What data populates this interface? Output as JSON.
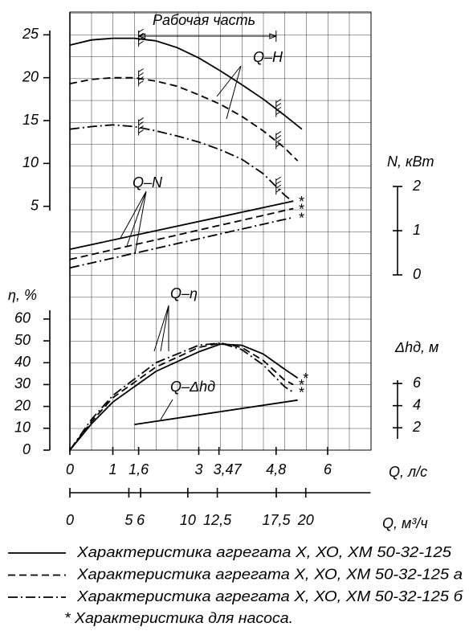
{
  "chart_data": {
    "type": "line",
    "working_part": {
      "label": "Рабочая часть",
      "range": [
        1.6,
        4.8
      ]
    },
    "curve_labels": [
      "Q–H",
      "Q–N",
      "Q–η",
      "Q–Δhд"
    ],
    "x": {
      "label": "Q, л/с",
      "lim": [
        0,
        7
      ],
      "ticks": [
        0,
        1,
        {
          "value": 1.6,
          "label": "1,6"
        },
        3,
        {
          "value": 3.47,
          "label": "3,47"
        },
        {
          "value": 4.8,
          "label": "4,8"
        },
        6
      ]
    },
    "x2": {
      "label": "Q, м³/ч",
      "lim": [
        0,
        25.5
      ],
      "ticks": [
        0,
        5,
        6,
        10,
        {
          "value": 12.5,
          "label": "12,5"
        },
        {
          "value": 17.5,
          "label": "17,5"
        },
        20
      ]
    },
    "H": {
      "lim": [
        4.5,
        25.5
      ],
      "ticks": [
        5,
        10,
        15,
        20,
        25
      ]
    },
    "N": {
      "label": "N, кВт",
      "lim": [
        0,
        2
      ],
      "ticks": [
        0,
        1,
        2
      ]
    },
    "eta": {
      "label": "η, %",
      "lim": [
        0,
        64
      ],
      "ticks": [
        0,
        10,
        20,
        30,
        40,
        50,
        60
      ]
    },
    "dh": {
      "label": "Δhд, м",
      "lim": [
        1,
        6.3
      ],
      "ticks": [
        2,
        4,
        6
      ]
    },
    "variants": [
      {
        "name": "Характеристика агрегата Х, ХО, ХМ 50-32-125",
        "style": "solid",
        "H": {
          "x": [
            0,
            0.5,
            1,
            1.5,
            2,
            2.5,
            3,
            3.5,
            4,
            4.5,
            5,
            5.4
          ],
          "values": [
            23.8,
            24.4,
            24.6,
            24.6,
            24.3,
            23.5,
            22.3,
            20.8,
            19.2,
            17.5,
            15.6,
            14
          ]
        },
        "N": {
          "x": [
            0,
            5.2
          ],
          "values": [
            0.58,
            1.67
          ]
        },
        "eta": {
          "x": [
            0,
            0.5,
            1,
            2,
            3,
            3.5,
            4,
            4.5,
            5,
            5.3
          ],
          "values": [
            0,
            12,
            22,
            36,
            45,
            48.5,
            48,
            44,
            37,
            33
          ]
        }
      },
      {
        "name": "Характеристика агрегата Х, ХО, ХМ 50-32-125 а",
        "style": "dashed",
        "H": {
          "x": [
            0,
            0.5,
            1,
            1.5,
            2,
            2.5,
            3,
            3.5,
            4,
            4.5,
            5,
            5.3
          ],
          "values": [
            19.3,
            19.8,
            20,
            20,
            19.6,
            19,
            18,
            16.9,
            15.5,
            13.8,
            11.8,
            10.3
          ]
        },
        "N": {
          "x": [
            0,
            5.2
          ],
          "values": [
            0.35,
            1.5
          ]
        },
        "eta": {
          "x": [
            0,
            0.5,
            1,
            2,
            3,
            3.5,
            4,
            4.5,
            5,
            5.2
          ],
          "values": [
            0,
            13,
            24,
            38,
            47,
            49,
            47,
            41,
            32,
            30
          ]
        }
      },
      {
        "name": "Характеристика агрегата Х, ХО, ХМ 50-32-125 б",
        "style": "dashdot",
        "H": {
          "x": [
            0,
            0.5,
            1,
            1.5,
            2,
            2.5,
            3,
            3.5,
            4,
            4.5,
            5,
            5.2
          ],
          "values": [
            14,
            14.3,
            14.5,
            14.3,
            13.8,
            13.2,
            12.5,
            11.6,
            10.5,
            8.8,
            6.3,
            5.5
          ]
        },
        "N": {
          "x": [
            0,
            5.2
          ],
          "values": [
            0.16,
            1.3
          ]
        },
        "eta": {
          "x": [
            0,
            0.5,
            1,
            2,
            3,
            3.5,
            4,
            4.5,
            5,
            5.2
          ],
          "values": [
            0,
            14,
            25,
            40,
            48,
            49,
            46,
            39,
            29,
            26.5
          ]
        }
      }
    ],
    "dh_curve": {
      "x": [
        1.5,
        5.3
      ],
      "values": [
        2.3,
        4.5
      ]
    },
    "marker": "*",
    "note": "* Характеристика для насоса."
  }
}
